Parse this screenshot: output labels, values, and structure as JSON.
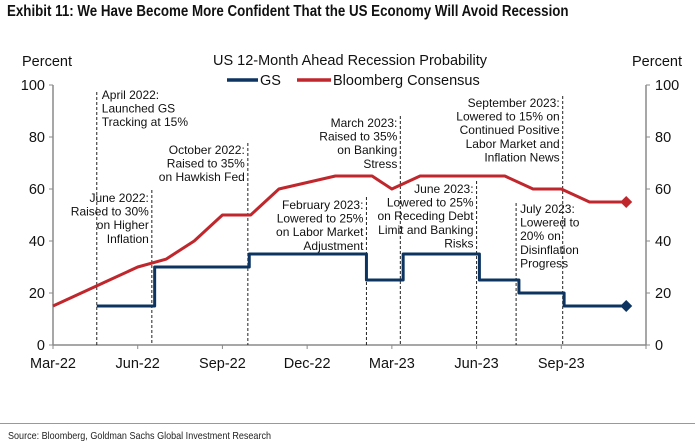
{
  "exhibit_title": "Exhibit 11: We Have Become More Confident That the US Economy Will Avoid Recession",
  "source": "Source: Bloomberg, Goldman Sachs Global Investment Research",
  "chart_data": {
    "type": "line",
    "title": "US 12-Month Ahead Recession Probability",
    "ylabel_left": "Percent",
    "ylabel_right": "Percent",
    "ylim": [
      0,
      100
    ],
    "yticks": [
      0,
      20,
      40,
      60,
      80,
      100
    ],
    "x_unit": "months since Mar-22",
    "xlim": [
      0,
      21
    ],
    "xticks": [
      {
        "m": 0,
        "label": "Mar-22"
      },
      {
        "m": 3,
        "label": "Jun-22"
      },
      {
        "m": 6,
        "label": "Sep-22"
      },
      {
        "m": 9,
        "label": "Dec-22"
      },
      {
        "m": 12,
        "label": "Mar-23"
      },
      {
        "m": 15,
        "label": "Jun-23"
      },
      {
        "m": 18,
        "label": "Sep-23"
      },
      {
        "m": 21,
        "label": ""
      }
    ],
    "legend": "top-center",
    "series": [
      {
        "name": "GS",
        "color": "#0d3461",
        "step": true,
        "points": [
          [
            1.55,
            15
          ],
          [
            3.6,
            15
          ],
          [
            3.6,
            30
          ],
          [
            6.95,
            30
          ],
          [
            6.95,
            35
          ],
          [
            11.1,
            35
          ],
          [
            11.1,
            25
          ],
          [
            12.4,
            25
          ],
          [
            12.4,
            35
          ],
          [
            15.1,
            35
          ],
          [
            15.1,
            25
          ],
          [
            16.5,
            25
          ],
          [
            16.5,
            20
          ],
          [
            18.1,
            20
          ],
          [
            18.1,
            15
          ],
          [
            20.3,
            15
          ]
        ]
      },
      {
        "name": "Bloomberg Consensus",
        "color": "#c0272d",
        "points": [
          [
            0,
            15
          ],
          [
            1,
            20
          ],
          [
            2,
            25
          ],
          [
            3,
            30
          ],
          [
            4,
            33
          ],
          [
            5,
            40
          ],
          [
            6,
            50
          ],
          [
            7,
            50
          ],
          [
            8,
            60
          ],
          [
            9,
            62.5
          ],
          [
            10,
            65
          ],
          [
            11.3,
            65
          ],
          [
            12,
            60
          ],
          [
            13,
            65
          ],
          [
            16,
            65
          ],
          [
            17,
            60
          ],
          [
            18,
            60
          ],
          [
            19,
            55
          ],
          [
            20.3,
            55
          ]
        ]
      }
    ],
    "annotations": [
      {
        "m": 1.55,
        "lines": [
          "April 2022:",
          "Launched GS",
          "Tracking at 15%"
        ]
      },
      {
        "m": 3.5,
        "lines": [
          "June 2022:",
          "Raised to 30%",
          "on Higher",
          "Inflation"
        ]
      },
      {
        "m": 6.9,
        "lines": [
          "October 2022:",
          "Raised to 35%",
          "on Hawkish Fed"
        ]
      },
      {
        "m": 11.1,
        "lines": [
          "February 2023:",
          "Lowered to 25%",
          "on Labor Market",
          "Adjustment"
        ]
      },
      {
        "m": 12.3,
        "lines": [
          "March 2023:",
          "Raised to 35%",
          "on Banking",
          "Stress"
        ]
      },
      {
        "m": 15.0,
        "lines": [
          "June 2023:",
          "Lowered to 25%",
          "on Receding Debt",
          "Limit and Banking",
          "Risks"
        ]
      },
      {
        "m": 16.4,
        "lines": [
          "July 2023:",
          "Lowered to",
          "20% on",
          "Disinflation",
          "Progress"
        ]
      },
      {
        "m": 18.05,
        "lines": [
          "September 2023:",
          "Lowered to 15% on",
          "Continued Positive",
          "Labor Market and",
          "Inflation News"
        ]
      }
    ]
  }
}
